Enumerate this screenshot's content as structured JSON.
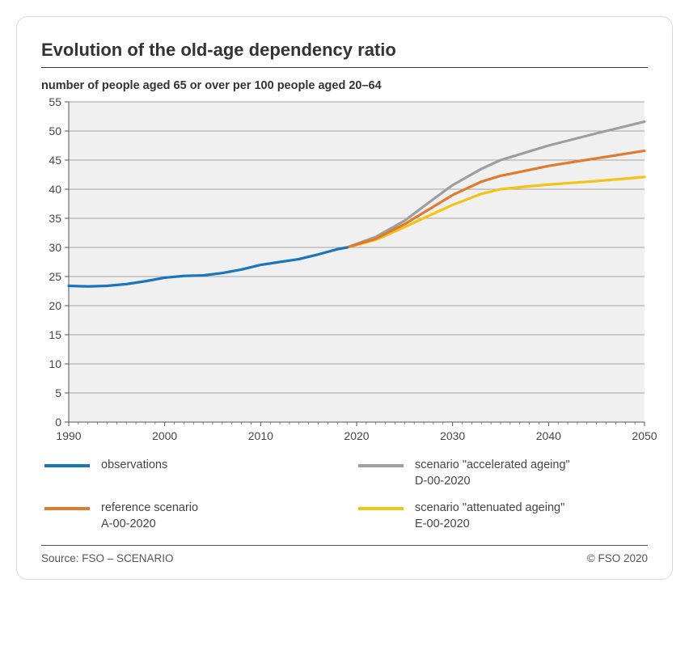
{
  "title": "Evolution of the old-age dependency ratio",
  "subtitle": "number of people aged 65 or over per 100 people aged 20–64",
  "chart": {
    "type": "line",
    "background_color": "#f0f0f0",
    "grid_color": "#a3a3a3",
    "axis_color": "#555555",
    "tick_color": "#555555",
    "label_color": "#454545",
    "label_fontsize": 14,
    "xlim": [
      1990,
      2050
    ],
    "xtick_step": 10,
    "ylim": [
      0,
      55
    ],
    "ytick_step": 5,
    "line_width": 3.2,
    "series": [
      {
        "id": "observations",
        "label": "observations",
        "color": "#1b75bb",
        "points": [
          [
            1990,
            23.4
          ],
          [
            1992,
            23.3
          ],
          [
            1994,
            23.4
          ],
          [
            1996,
            23.7
          ],
          [
            1998,
            24.2
          ],
          [
            2000,
            24.8
          ],
          [
            2002,
            25.1
          ],
          [
            2004,
            25.2
          ],
          [
            2006,
            25.6
          ],
          [
            2008,
            26.2
          ],
          [
            2010,
            27.0
          ],
          [
            2012,
            27.5
          ],
          [
            2014,
            28.0
          ],
          [
            2016,
            28.8
          ],
          [
            2018,
            29.7
          ],
          [
            2019,
            30.0
          ]
        ]
      },
      {
        "id": "reference",
        "label": "reference scenario\nA-00-2020",
        "color": "#e07a2e",
        "points": [
          [
            2019,
            30.0
          ],
          [
            2022,
            31.5
          ],
          [
            2025,
            34.0
          ],
          [
            2028,
            37.0
          ],
          [
            2030,
            39.0
          ],
          [
            2033,
            41.3
          ],
          [
            2035,
            42.3
          ],
          [
            2038,
            43.3
          ],
          [
            2040,
            44.0
          ],
          [
            2045,
            45.3
          ],
          [
            2050,
            46.6
          ]
        ]
      },
      {
        "id": "accelerated",
        "label": "scenario \"accelerated ageing\"\nD-00-2020",
        "color": "#9e9e9e",
        "points": [
          [
            2019,
            30.0
          ],
          [
            2022,
            31.8
          ],
          [
            2025,
            34.6
          ],
          [
            2028,
            38.3
          ],
          [
            2030,
            40.7
          ],
          [
            2033,
            43.5
          ],
          [
            2035,
            45.0
          ],
          [
            2038,
            46.5
          ],
          [
            2040,
            47.5
          ],
          [
            2045,
            49.6
          ],
          [
            2050,
            51.6
          ]
        ]
      },
      {
        "id": "attenuated",
        "label": "scenario \"attenuated ageing\"\nE-00-2020",
        "color": "#f5c316",
        "points": [
          [
            2019,
            30.0
          ],
          [
            2022,
            31.3
          ],
          [
            2025,
            33.5
          ],
          [
            2028,
            35.8
          ],
          [
            2030,
            37.3
          ],
          [
            2033,
            39.2
          ],
          [
            2035,
            40.0
          ],
          [
            2038,
            40.5
          ],
          [
            2040,
            40.8
          ],
          [
            2045,
            41.4
          ],
          [
            2050,
            42.1
          ]
        ]
      }
    ]
  },
  "legend_order": [
    "observations",
    "accelerated",
    "reference",
    "attenuated"
  ],
  "source": "Source: FSO – SCENARIO",
  "copyright": "© FSO 2020"
}
